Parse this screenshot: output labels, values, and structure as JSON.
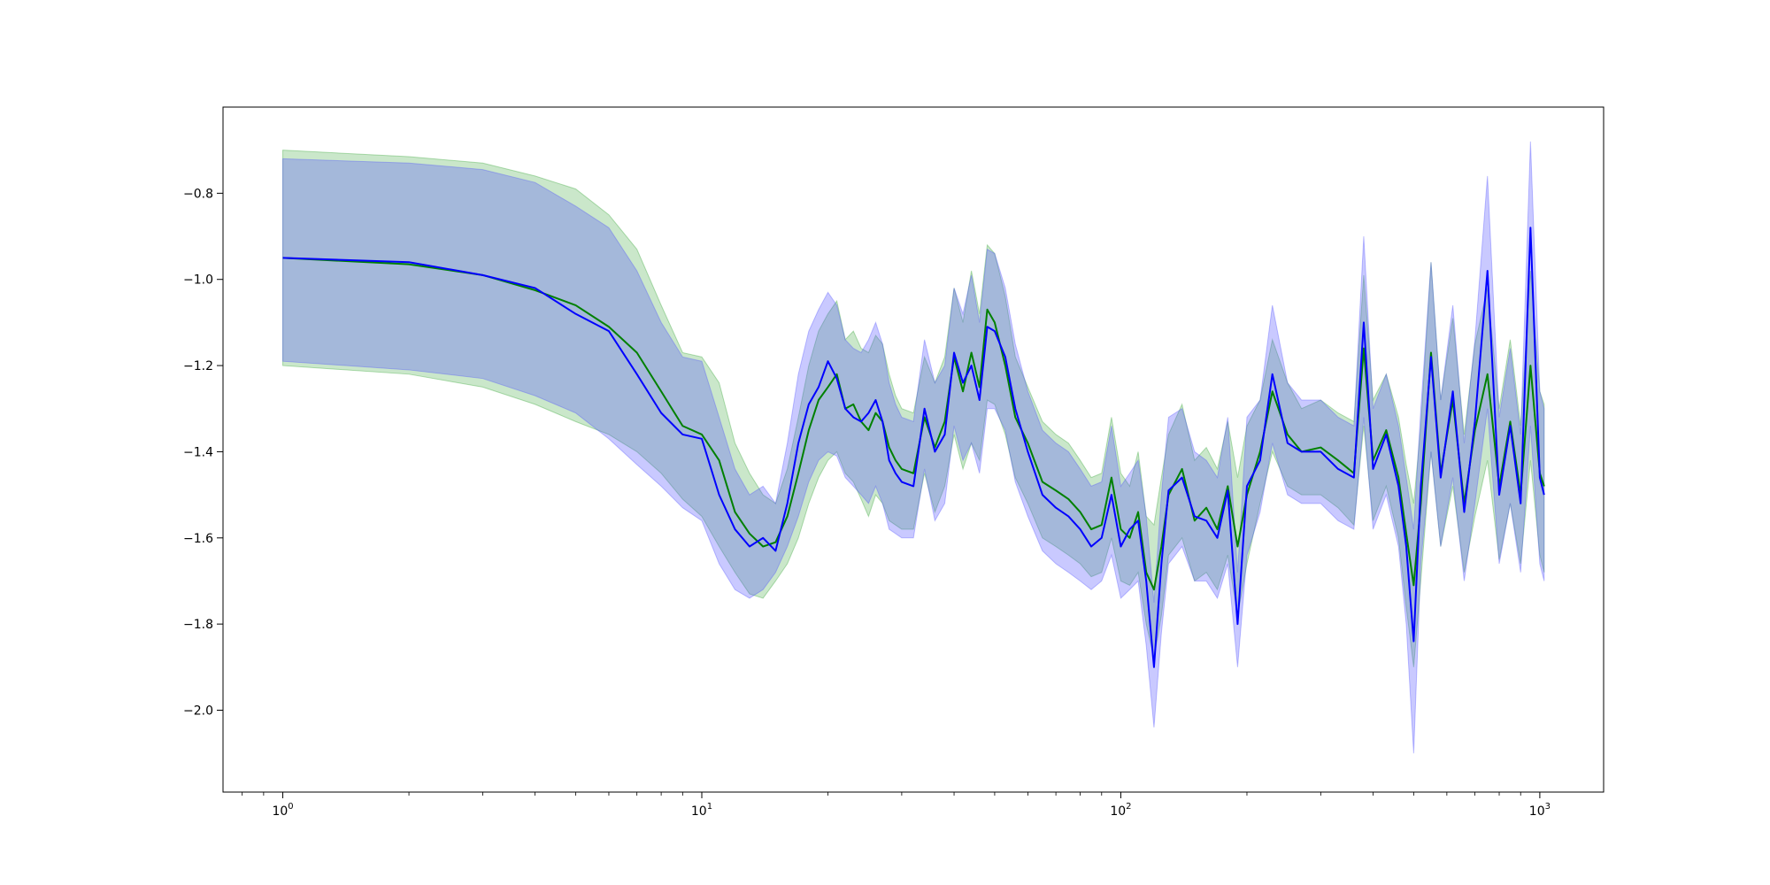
{
  "chart_data": {
    "type": "line",
    "x_scale": "log",
    "xlim": [
      0.72,
      1420
    ],
    "ylim": [
      -2.19,
      -0.6
    ],
    "grid": false,
    "x_ticks": [
      {
        "value": 1,
        "base": "10",
        "exp": "0"
      },
      {
        "value": 10,
        "base": "10",
        "exp": "1"
      },
      {
        "value": 100,
        "base": "10",
        "exp": "2"
      },
      {
        "value": 1000,
        "base": "10",
        "exp": "3"
      }
    ],
    "y_ticks": [
      {
        "value": -0.8,
        "label": "−0.8"
      },
      {
        "value": -1.0,
        "label": "−1.0"
      },
      {
        "value": -1.2,
        "label": "−1.2"
      },
      {
        "value": -1.4,
        "label": "−1.4"
      },
      {
        "value": -1.6,
        "label": "−1.6"
      },
      {
        "value": -1.8,
        "label": "−1.8"
      },
      {
        "value": -2.0,
        "label": "−2.0"
      }
    ],
    "series": [
      {
        "color": "#008000",
        "band_color": "#2ca02c",
        "band_opacity": 0.25,
        "x": [
          1,
          2,
          3,
          4,
          5,
          6,
          7,
          8,
          9,
          10,
          11,
          12,
          13,
          14,
          15,
          16,
          17,
          18,
          19,
          20,
          21,
          22,
          23,
          24,
          25,
          26,
          27,
          28,
          29,
          30,
          32,
          34,
          36,
          38,
          40,
          42,
          44,
          46,
          48,
          50,
          53,
          56,
          60,
          65,
          70,
          75,
          80,
          85,
          90,
          95,
          100,
          105,
          110,
          115,
          120,
          125,
          130,
          140,
          150,
          160,
          170,
          180,
          190,
          200,
          215,
          230,
          250,
          270,
          300,
          330,
          360,
          380,
          400,
          430,
          460,
          480,
          500,
          520,
          550,
          580,
          620,
          660,
          700,
          750,
          800,
          850,
          900,
          950,
          1000,
          1024
        ],
        "y": [
          -0.95,
          -0.965,
          -0.99,
          -1.025,
          -1.06,
          -1.11,
          -1.17,
          -1.26,
          -1.34,
          -1.36,
          -1.42,
          -1.54,
          -1.59,
          -1.62,
          -1.61,
          -1.55,
          -1.45,
          -1.35,
          -1.28,
          -1.25,
          -1.22,
          -1.3,
          -1.29,
          -1.33,
          -1.35,
          -1.31,
          -1.33,
          -1.39,
          -1.42,
          -1.44,
          -1.45,
          -1.32,
          -1.39,
          -1.33,
          -1.18,
          -1.26,
          -1.17,
          -1.25,
          -1.07,
          -1.1,
          -1.2,
          -1.32,
          -1.38,
          -1.47,
          -1.49,
          -1.51,
          -1.54,
          -1.58,
          -1.57,
          -1.46,
          -1.58,
          -1.6,
          -1.54,
          -1.68,
          -1.72,
          -1.62,
          -1.5,
          -1.44,
          -1.56,
          -1.53,
          -1.58,
          -1.48,
          -1.62,
          -1.5,
          -1.4,
          -1.26,
          -1.36,
          -1.4,
          -1.39,
          -1.42,
          -1.45,
          -1.16,
          -1.42,
          -1.35,
          -1.46,
          -1.59,
          -1.71,
          -1.52,
          -1.17,
          -1.45,
          -1.28,
          -1.52,
          -1.35,
          -1.22,
          -1.48,
          -1.33,
          -1.5,
          -1.2,
          -1.45,
          -1.48
        ],
        "lower": [
          -1.2,
          -1.22,
          -1.25,
          -1.29,
          -1.33,
          -1.36,
          -1.4,
          -1.45,
          -1.51,
          -1.55,
          -1.62,
          -1.68,
          -1.73,
          -1.74,
          -1.7,
          -1.66,
          -1.6,
          -1.52,
          -1.46,
          -1.42,
          -1.4,
          -1.45,
          -1.47,
          -1.51,
          -1.55,
          -1.5,
          -1.52,
          -1.56,
          -1.57,
          -1.58,
          -1.58,
          -1.45,
          -1.54,
          -1.48,
          -1.36,
          -1.44,
          -1.38,
          -1.42,
          -1.28,
          -1.29,
          -1.36,
          -1.46,
          -1.52,
          -1.6,
          -1.62,
          -1.64,
          -1.66,
          -1.69,
          -1.68,
          -1.6,
          -1.7,
          -1.71,
          -1.68,
          -1.8,
          -1.88,
          -1.78,
          -1.64,
          -1.6,
          -1.7,
          -1.68,
          -1.72,
          -1.64,
          -1.78,
          -1.66,
          -1.52,
          -1.4,
          -1.48,
          -1.5,
          -1.5,
          -1.53,
          -1.57,
          -1.34,
          -1.56,
          -1.48,
          -1.6,
          -1.76,
          -1.9,
          -1.7,
          -1.4,
          -1.62,
          -1.48,
          -1.68,
          -1.55,
          -1.42,
          -1.65,
          -1.52,
          -1.66,
          -1.42,
          -1.64,
          -1.68
        ],
        "upper": [
          -0.7,
          -0.715,
          -0.73,
          -0.76,
          -0.79,
          -0.85,
          -0.93,
          -1.06,
          -1.17,
          -1.18,
          -1.24,
          -1.38,
          -1.45,
          -1.5,
          -1.52,
          -1.44,
          -1.32,
          -1.2,
          -1.12,
          -1.08,
          -1.05,
          -1.14,
          -1.12,
          -1.16,
          -1.17,
          -1.13,
          -1.15,
          -1.22,
          -1.27,
          -1.3,
          -1.31,
          -1.18,
          -1.24,
          -1.18,
          -1.02,
          -1.1,
          -0.98,
          -1.08,
          -0.92,
          -0.94,
          -1.04,
          -1.18,
          -1.25,
          -1.33,
          -1.36,
          -1.38,
          -1.42,
          -1.46,
          -1.45,
          -1.32,
          -1.45,
          -1.48,
          -1.4,
          -1.55,
          -1.57,
          -1.46,
          -1.36,
          -1.29,
          -1.42,
          -1.39,
          -1.44,
          -1.33,
          -1.46,
          -1.34,
          -1.28,
          -1.14,
          -1.24,
          -1.3,
          -1.28,
          -1.31,
          -1.33,
          -0.99,
          -1.28,
          -1.22,
          -1.32,
          -1.43,
          -1.52,
          -1.34,
          -0.96,
          -1.28,
          -1.09,
          -1.36,
          -1.15,
          -1.02,
          -1.3,
          -1.14,
          -1.34,
          -0.98,
          -1.26,
          -1.29
        ]
      },
      {
        "color": "#0000ff",
        "band_color": "#4c4cff",
        "band_opacity": 0.3,
        "x": [
          1,
          2,
          3,
          4,
          5,
          6,
          7,
          8,
          9,
          10,
          11,
          12,
          13,
          14,
          15,
          16,
          17,
          18,
          19,
          20,
          21,
          22,
          23,
          24,
          25,
          26,
          27,
          28,
          29,
          30,
          32,
          34,
          36,
          38,
          40,
          42,
          44,
          46,
          48,
          50,
          53,
          56,
          60,
          65,
          70,
          75,
          80,
          85,
          90,
          95,
          100,
          105,
          110,
          115,
          120,
          125,
          130,
          140,
          150,
          160,
          170,
          180,
          190,
          200,
          215,
          230,
          250,
          270,
          300,
          330,
          360,
          380,
          400,
          430,
          460,
          480,
          500,
          520,
          550,
          580,
          620,
          660,
          700,
          750,
          800,
          850,
          900,
          950,
          1000,
          1024
        ],
        "y": [
          -0.95,
          -0.96,
          -0.99,
          -1.02,
          -1.08,
          -1.12,
          -1.22,
          -1.31,
          -1.36,
          -1.37,
          -1.5,
          -1.58,
          -1.62,
          -1.6,
          -1.63,
          -1.52,
          -1.38,
          -1.29,
          -1.25,
          -1.19,
          -1.23,
          -1.3,
          -1.32,
          -1.33,
          -1.31,
          -1.28,
          -1.33,
          -1.42,
          -1.45,
          -1.47,
          -1.48,
          -1.3,
          -1.4,
          -1.36,
          -1.17,
          -1.24,
          -1.2,
          -1.28,
          -1.11,
          -1.12,
          -1.18,
          -1.3,
          -1.4,
          -1.5,
          -1.53,
          -1.55,
          -1.58,
          -1.62,
          -1.6,
          -1.5,
          -1.62,
          -1.58,
          -1.56,
          -1.7,
          -1.9,
          -1.66,
          -1.49,
          -1.46,
          -1.55,
          -1.56,
          -1.6,
          -1.49,
          -1.8,
          -1.48,
          -1.42,
          -1.22,
          -1.38,
          -1.4,
          -1.4,
          -1.44,
          -1.46,
          -1.1,
          -1.44,
          -1.36,
          -1.48,
          -1.62,
          -1.84,
          -1.48,
          -1.18,
          -1.46,
          -1.26,
          -1.54,
          -1.33,
          -0.98,
          -1.5,
          -1.34,
          -1.52,
          -0.88,
          -1.46,
          -1.5
        ],
        "lower": [
          -1.19,
          -1.21,
          -1.23,
          -1.27,
          -1.31,
          -1.37,
          -1.43,
          -1.48,
          -1.53,
          -1.56,
          -1.66,
          -1.72,
          -1.74,
          -1.72,
          -1.68,
          -1.62,
          -1.55,
          -1.47,
          -1.42,
          -1.4,
          -1.41,
          -1.46,
          -1.48,
          -1.5,
          -1.52,
          -1.48,
          -1.52,
          -1.58,
          -1.59,
          -1.6,
          -1.6,
          -1.44,
          -1.56,
          -1.52,
          -1.34,
          -1.42,
          -1.38,
          -1.45,
          -1.3,
          -1.3,
          -1.35,
          -1.47,
          -1.55,
          -1.63,
          -1.66,
          -1.68,
          -1.7,
          -1.72,
          -1.7,
          -1.64,
          -1.74,
          -1.72,
          -1.7,
          -1.85,
          -2.04,
          -1.82,
          -1.66,
          -1.62,
          -1.7,
          -1.7,
          -1.74,
          -1.66,
          -1.9,
          -1.64,
          -1.54,
          -1.38,
          -1.5,
          -1.52,
          -1.52,
          -1.56,
          -1.58,
          -1.32,
          -1.58,
          -1.5,
          -1.62,
          -1.8,
          -2.1,
          -1.66,
          -1.4,
          -1.62,
          -1.46,
          -1.7,
          -1.52,
          -1.3,
          -1.66,
          -1.52,
          -1.68,
          -1.34,
          -1.66,
          -1.7
        ],
        "upper": [
          -0.72,
          -0.73,
          -0.745,
          -0.775,
          -0.83,
          -0.88,
          -0.98,
          -1.1,
          -1.18,
          -1.19,
          -1.32,
          -1.44,
          -1.5,
          -1.48,
          -1.52,
          -1.38,
          -1.22,
          -1.12,
          -1.07,
          -1.03,
          -1.06,
          -1.14,
          -1.16,
          -1.17,
          -1.14,
          -1.1,
          -1.15,
          -1.24,
          -1.29,
          -1.32,
          -1.33,
          -1.14,
          -1.24,
          -1.2,
          -1.02,
          -1.08,
          -0.99,
          -1.1,
          -0.93,
          -0.94,
          -1.02,
          -1.15,
          -1.26,
          -1.35,
          -1.38,
          -1.4,
          -1.44,
          -1.48,
          -1.47,
          -1.34,
          -1.48,
          -1.45,
          -1.42,
          -1.55,
          -1.75,
          -1.5,
          -1.32,
          -1.3,
          -1.4,
          -1.42,
          -1.46,
          -1.32,
          -1.68,
          -1.32,
          -1.28,
          -1.06,
          -1.24,
          -1.28,
          -1.28,
          -1.32,
          -1.34,
          -0.9,
          -1.3,
          -1.22,
          -1.34,
          -1.46,
          -1.58,
          -1.3,
          -0.96,
          -1.28,
          -1.06,
          -1.38,
          -1.14,
          -0.76,
          -1.32,
          -1.16,
          -1.36,
          -0.68,
          -1.26,
          -1.3
        ]
      }
    ]
  }
}
